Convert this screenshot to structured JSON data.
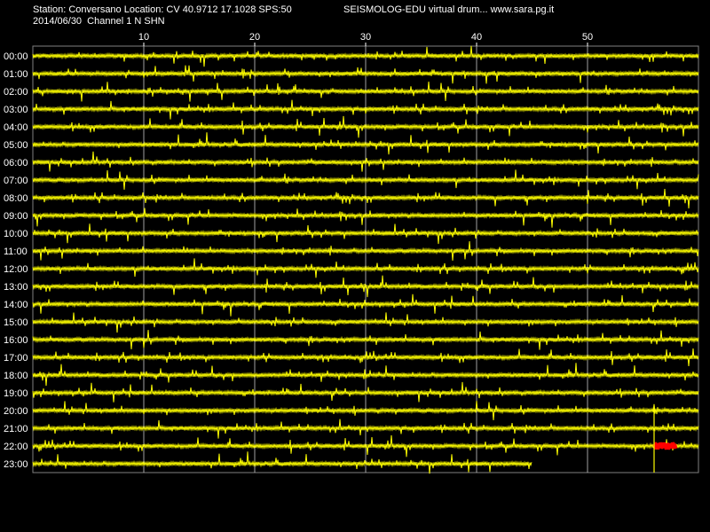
{
  "header": {
    "station_line": "Station: Conversano Location: CV 40.9712 17.1028 SPS:50",
    "date_line": "2014/06/30  Channel 1 N SHN",
    "brand": "SEISMOLOG-EDU virtual drum... www.sara.pg.it"
  },
  "colors": {
    "background": "#000000",
    "trace": "#ffff00",
    "event": "#ff0000",
    "grid": "#ffffff"
  },
  "chart_data": {
    "type": "line",
    "xlim": [
      0,
      60
    ],
    "x_ticks": [
      10,
      20,
      30,
      40,
      50
    ],
    "rows": [
      "00:00",
      "01:00",
      "02:00",
      "03:00",
      "04:00",
      "05:00",
      "06:00",
      "07:00",
      "08:00",
      "09:00",
      "10:00",
      "11:00",
      "12:00",
      "13:00",
      "14:00",
      "15:00",
      "16:00",
      "17:00",
      "18:00",
      "19:00",
      "20:00",
      "21:00",
      "22:00",
      "23:00"
    ],
    "last_row_end_minute": 45,
    "event": {
      "row": "22:00",
      "start_minute": 56,
      "end_minute": 58
    },
    "marker_minute": 56
  }
}
